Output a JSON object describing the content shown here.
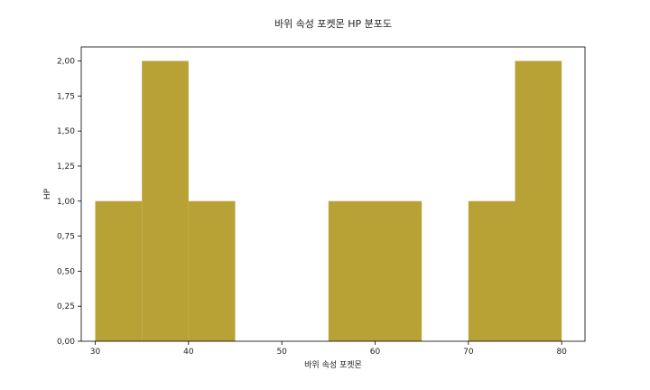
{
  "chart_data": {
    "type": "bar",
    "title": "바위 속성 포켓몬 HP 분포도",
    "xlabel": "바위 속성 포켓몬",
    "ylabel": "HP",
    "bar_color": "#b8a236",
    "xlim": [
      28.5,
      82.5
    ],
    "ylim": [
      0,
      2.1
    ],
    "x_ticks": [
      30,
      40,
      50,
      60,
      70,
      80
    ],
    "x_tick_labels": [
      "30",
      "40",
      "50",
      "60",
      "70",
      "80"
    ],
    "y_ticks": [
      0,
      0.25,
      0.5,
      0.75,
      1.0,
      1.25,
      1.5,
      1.75,
      2.0
    ],
    "y_tick_labels": [
      "0,00",
      "0,25",
      "0,50",
      "0,75",
      "1,00",
      "1,25",
      "1,50",
      "1,75",
      "2,00"
    ],
    "bins": [
      {
        "x0": 30,
        "x1": 35,
        "count": 1
      },
      {
        "x0": 35,
        "x1": 40,
        "count": 2
      },
      {
        "x0": 40,
        "x1": 45,
        "count": 1
      },
      {
        "x0": 45,
        "x1": 50,
        "count": 0
      },
      {
        "x0": 50,
        "x1": 55,
        "count": 0
      },
      {
        "x0": 55,
        "x1": 60,
        "count": 1
      },
      {
        "x0": 60,
        "x1": 65,
        "count": 1
      },
      {
        "x0": 65,
        "x1": 70,
        "count": 0
      },
      {
        "x0": 70,
        "x1": 75,
        "count": 1
      },
      {
        "x0": 75,
        "x1": 80,
        "count": 2
      }
    ],
    "grid": false,
    "legend": "none"
  }
}
